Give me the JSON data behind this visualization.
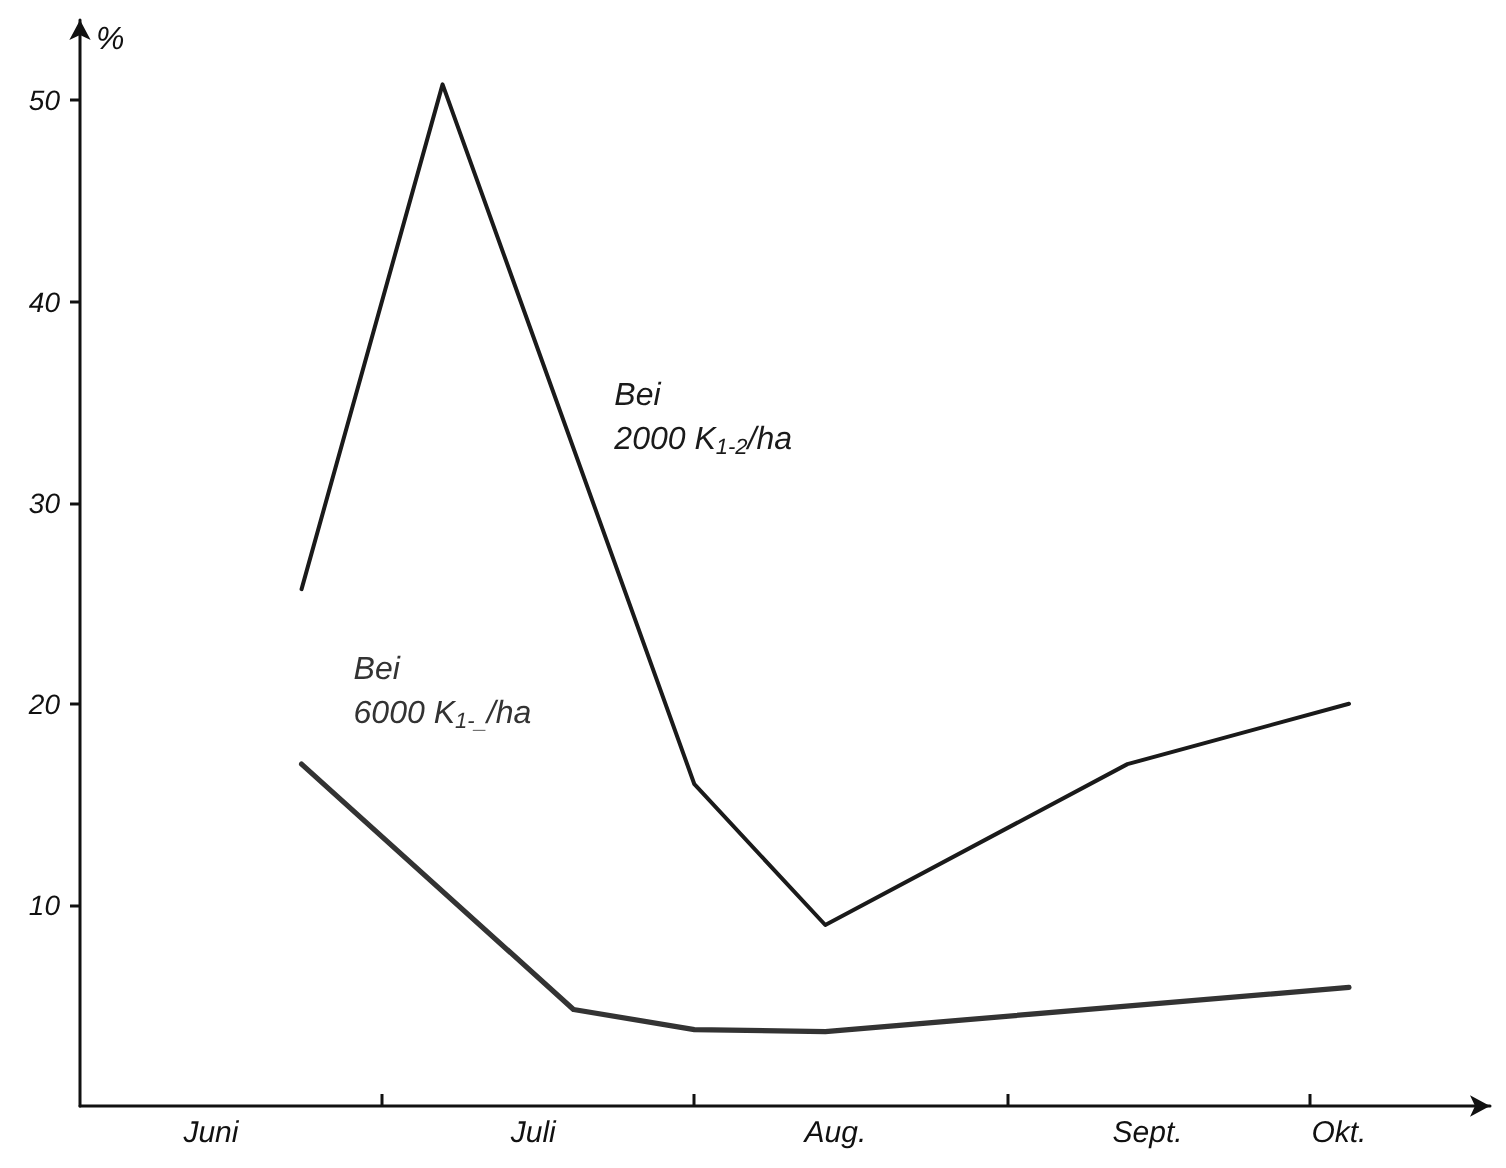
{
  "chart_data": {
    "type": "line",
    "ylabel": "%",
    "xlim": [
      "--06-01",
      "--10-19"
    ],
    "ylim": [
      0,
      54
    ],
    "yticks": [
      10,
      20,
      30,
      40,
      50
    ],
    "xticks": [
      {
        "value": "--06-14",
        "label": "Juni"
      },
      {
        "value": "--07-01",
        "label": null
      },
      {
        "value": "--07-16",
        "label": "Juli"
      },
      {
        "value": "--08-01",
        "label": null
      },
      {
        "value": "--08-15",
        "label": "Aug."
      },
      {
        "value": "--09-01",
        "label": null
      },
      {
        "value": "--09-15",
        "label": "Sept."
      },
      {
        "value": "--10-01",
        "label": null
      },
      {
        "value": "--10-04",
        "label": "Okt."
      }
    ],
    "series": [
      {
        "name": "Bei\n2000 K$_{1-2}$/ha",
        "color": "#1a1a1a",
        "x": [
          "--06-23",
          "--07-07",
          "--08-01",
          "--08-14",
          "--09-13",
          "--10-05"
        ],
        "values": [
          25.7,
          50.8,
          16,
          9,
          17,
          20
        ]
      },
      {
        "name": "Bei\n6000 K$_{1-_}$/ha",
        "color": "#333333",
        "x": [
          "--06-23",
          "--07-20",
          "--08-01",
          "--08-14",
          "--10-05"
        ],
        "values": [
          17,
          4.8,
          3.8,
          3.7,
          5.9
        ]
      }
    ],
    "grid": false,
    "legend": false,
    "marker": "none",
    "line_style": "solid"
  }
}
